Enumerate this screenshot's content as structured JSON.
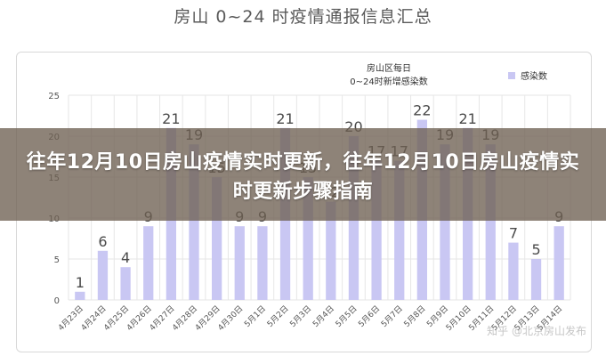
{
  "page_title": "房山 0~24 时疫情通报信息汇总",
  "overlay_title": "往年12月10日房山疫情实时更新，往年12月10日房山疫情实时更新步骤指南",
  "watermark": "知乎 @北京房山发布",
  "colors": {
    "bar": "#c9c7f3",
    "bar_label": "#4a4a4a",
    "grid": "#e6e6e6",
    "axis_text": "#555555",
    "overlay": "#6e6052"
  },
  "chart_data": {
    "type": "bar",
    "title_line1": "房山区每日",
    "title_line2": "0~24时新增感染数",
    "legend": [
      {
        "name": "感染数",
        "color": "#c9c7f3"
      }
    ],
    "legend_position": "top-right",
    "grid": true,
    "ylim": [
      0,
      25
    ],
    "yticks": [
      0,
      5,
      10,
      15,
      20,
      25
    ],
    "categories": [
      "4月23日",
      "4月24日",
      "4月25日",
      "4月26日",
      "4月27日",
      "4月28日",
      "4月29日",
      "4月30日",
      "5月1日",
      "5月2日",
      "5月3日",
      "5月4日",
      "5月5日",
      "5月6日",
      "5月7日",
      "5月8日",
      "5月9日",
      "5月10日",
      "5月11日",
      "5月12日",
      "5月13日",
      "5月14日"
    ],
    "values": [
      1,
      6,
      4,
      9,
      21,
      19,
      15,
      9,
      9,
      21,
      15,
      12,
      20,
      17,
      17,
      22,
      19,
      21,
      19,
      7,
      5,
      9
    ]
  }
}
